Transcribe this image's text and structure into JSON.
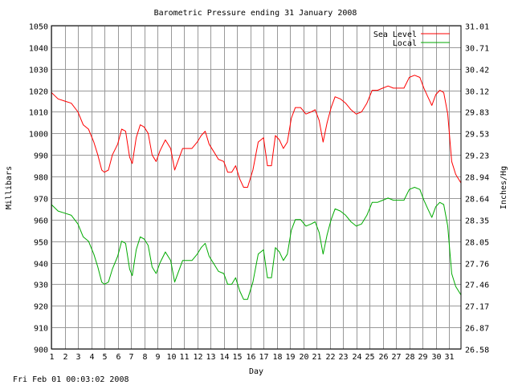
{
  "footer": {
    "timestamp": "Fri Feb 01 00:03:02 2008"
  },
  "chart_data": {
    "type": "line",
    "title": "Barometric Pressure ending 31 January 2008",
    "xlabel": "Day",
    "ylabel": "Millibars",
    "y2label": "Inches/Hg",
    "xlim": [
      1,
      31.9
    ],
    "ylim": [
      900,
      1050
    ],
    "y2lim": [
      26.58,
      31.01
    ],
    "grid": true,
    "legend_position": "top-right",
    "x_ticks": [
      1,
      2,
      3,
      4,
      5,
      6,
      7,
      8,
      9,
      10,
      11,
      12,
      13,
      14,
      15,
      16,
      17,
      18,
      19,
      20,
      21,
      22,
      23,
      24,
      25,
      26,
      27,
      28,
      29,
      30,
      31
    ],
    "y_ticks": [
      900,
      910,
      920,
      930,
      940,
      950,
      960,
      970,
      980,
      990,
      1000,
      1010,
      1020,
      1030,
      1040,
      1050
    ],
    "y2_ticks": [
      "26.58",
      "26.87",
      "27.17",
      "27.46",
      "27.76",
      "28.05",
      "28.35",
      "28.64",
      "28.94",
      "29.23",
      "29.53",
      "29.83",
      "30.12",
      "30.42",
      "30.71",
      "31.01"
    ],
    "series": [
      {
        "name": "Sea Level",
        "color": "#ff0000",
        "x": [
          1,
          1.5,
          2,
          2.5,
          3,
          3.4,
          3.8,
          4.2,
          4.5,
          4.8,
          5,
          5.3,
          5.6,
          6,
          6.3,
          6.6,
          6.9,
          7.1,
          7.4,
          7.7,
          8,
          8.3,
          8.6,
          8.9,
          9.2,
          9.6,
          10,
          10.3,
          10.6,
          10.9,
          11.2,
          11.6,
          12,
          12.3,
          12.6,
          12.9,
          13.2,
          13.6,
          14,
          14.3,
          14.6,
          14.9,
          15.2,
          15.5,
          15.8,
          16.2,
          16.6,
          17,
          17.3,
          17.6,
          17.9,
          18.2,
          18.5,
          18.8,
          19.1,
          19.4,
          19.8,
          20.2,
          20.6,
          20.9,
          21.2,
          21.5,
          21.8,
          22.1,
          22.4,
          22.8,
          23.2,
          23.6,
          24,
          24.4,
          24.8,
          25.2,
          25.6,
          26,
          26.4,
          26.8,
          27.2,
          27.6,
          28,
          28.4,
          28.8,
          29.1,
          29.4,
          29.7,
          30,
          30.3,
          30.6,
          30.9,
          31.2,
          31.5,
          31.9
        ],
        "y": [
          1019,
          1016,
          1015,
          1014,
          1010,
          1004,
          1002,
          996,
          990,
          983,
          982,
          983,
          990,
          995,
          1002,
          1001,
          989,
          986,
          998,
          1004,
          1003,
          1000,
          990,
          987,
          992,
          997,
          993,
          983,
          988,
          993,
          993,
          993,
          996,
          999,
          1001,
          995,
          992,
          988,
          987,
          982,
          982,
          985,
          979,
          975,
          975,
          983,
          996,
          998,
          985,
          985,
          999,
          997,
          993,
          996,
          1007,
          1012,
          1012,
          1009,
          1010,
          1011,
          1006,
          996,
          1005,
          1012,
          1017,
          1016,
          1014,
          1011,
          1009,
          1010,
          1014,
          1020,
          1020,
          1021,
          1022,
          1021,
          1021,
          1021,
          1026,
          1027,
          1026,
          1021,
          1017,
          1013,
          1018,
          1020,
          1019,
          1009,
          987,
          981,
          977
        ]
      },
      {
        "name": "Local",
        "color": "#00aa00",
        "x": [
          1,
          1.5,
          2,
          2.5,
          3,
          3.4,
          3.8,
          4.2,
          4.5,
          4.8,
          5,
          5.3,
          5.6,
          6,
          6.3,
          6.6,
          6.9,
          7.1,
          7.4,
          7.7,
          8,
          8.3,
          8.6,
          8.9,
          9.2,
          9.6,
          10,
          10.3,
          10.6,
          10.9,
          11.2,
          11.6,
          12,
          12.3,
          12.6,
          12.9,
          13.2,
          13.6,
          14,
          14.3,
          14.6,
          14.9,
          15.2,
          15.5,
          15.8,
          16.2,
          16.6,
          17,
          17.3,
          17.6,
          17.9,
          18.2,
          18.5,
          18.8,
          19.1,
          19.4,
          19.8,
          20.2,
          20.6,
          20.9,
          21.2,
          21.5,
          21.8,
          22.1,
          22.4,
          22.8,
          23.2,
          23.6,
          24,
          24.4,
          24.8,
          25.2,
          25.6,
          26,
          26.4,
          26.8,
          27.2,
          27.6,
          28,
          28.4,
          28.8,
          29.1,
          29.4,
          29.7,
          30,
          30.3,
          30.6,
          30.9,
          31.2,
          31.5,
          31.9
        ],
        "y": [
          967,
          964,
          963,
          962,
          958,
          952,
          950,
          944,
          938,
          931,
          930,
          931,
          937,
          943,
          950,
          949,
          937,
          934,
          946,
          952,
          951,
          948,
          938,
          935,
          940,
          945,
          941,
          931,
          936,
          941,
          941,
          941,
          944,
          947,
          949,
          943,
          940,
          936,
          935,
          930,
          930,
          933,
          927,
          923,
          923,
          931,
          944,
          946,
          933,
          933,
          947,
          945,
          941,
          944,
          955,
          960,
          960,
          957,
          958,
          959,
          954,
          944,
          953,
          960,
          965,
          964,
          962,
          959,
          957,
          958,
          962,
          968,
          968,
          969,
          970,
          969,
          969,
          969,
          974,
          975,
          974,
          969,
          965,
          961,
          966,
          968,
          967,
          957,
          935,
          929,
          925
        ]
      }
    ]
  }
}
